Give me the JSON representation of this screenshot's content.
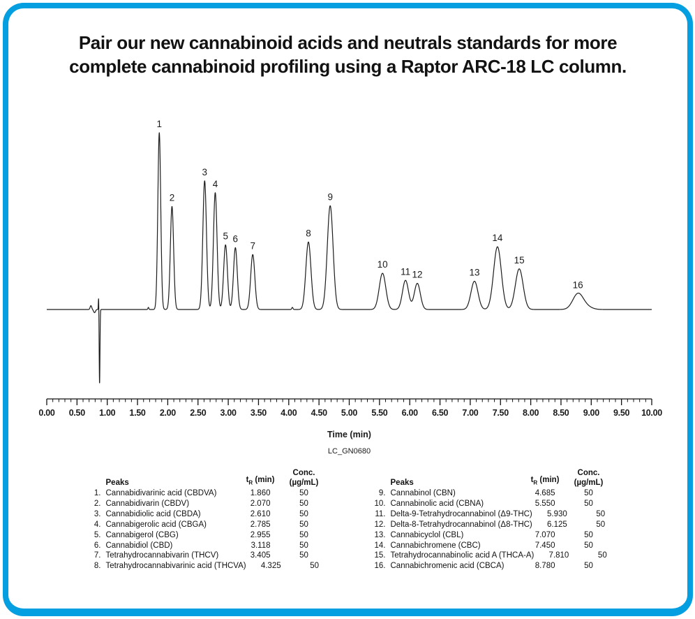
{
  "card": {
    "border_color": "#049fe0",
    "background": "#ffffff"
  },
  "title": {
    "line1": "Pair our new cannabinoid acids and neutrals standards for more",
    "line2": "complete cannabinoid profiling using a Raptor ARC-18 LC column."
  },
  "chart_data": {
    "type": "line",
    "subtype": "chromatogram",
    "xlabel": "Time (min)",
    "xlim": [
      0,
      10
    ],
    "major_tick_step": 0.5,
    "minor_tick_step": 0.1,
    "x_ticks": [
      "0.00",
      "0.50",
      "1.00",
      "1.50",
      "2.00",
      "2.50",
      "3.00",
      "3.50",
      "4.00",
      "4.50",
      "5.00",
      "5.50",
      "6.00",
      "6.50",
      "7.00",
      "7.50",
      "8.00",
      "8.50",
      "9.00",
      "9.50",
      "10.00"
    ],
    "y_units": "relative detector response (unlabeled axis, max peak = 1)",
    "ylim": [
      -0.45,
      1.08
    ],
    "grid": false,
    "legend": false,
    "trace_color": "#1c1c1c",
    "watermark": "LC_GN0680",
    "watermark_color": "#8c8c8c",
    "peaks": [
      {
        "num": "1",
        "t": 1.86,
        "height": 1.0,
        "sigma": 0.024
      },
      {
        "num": "2",
        "t": 2.07,
        "height": 0.583,
        "sigma": 0.027
      },
      {
        "num": "3",
        "t": 2.61,
        "height": 0.728,
        "sigma": 0.03
      },
      {
        "num": "4",
        "t": 2.785,
        "height": 0.661,
        "sigma": 0.03
      },
      {
        "num": "5",
        "t": 2.955,
        "height": 0.366,
        "sigma": 0.031
      },
      {
        "num": "6",
        "t": 3.118,
        "height": 0.35,
        "sigma": 0.031
      },
      {
        "num": "7",
        "t": 3.405,
        "height": 0.311,
        "sigma": 0.034
      },
      {
        "num": "8",
        "t": 4.325,
        "height": 0.382,
        "sigma": 0.042
      },
      {
        "num": "9",
        "t": 4.685,
        "height": 0.587,
        "sigma": 0.048
      },
      {
        "num": "10",
        "t": 5.55,
        "height": 0.205,
        "sigma": 0.054
      },
      {
        "num": "11",
        "t": 5.93,
        "height": 0.165,
        "sigma": 0.05
      },
      {
        "num": "12",
        "t": 6.125,
        "height": 0.148,
        "sigma": 0.05
      },
      {
        "num": "13",
        "t": 7.07,
        "height": 0.16,
        "sigma": 0.058
      },
      {
        "num": "14",
        "t": 7.45,
        "height": 0.355,
        "sigma": 0.064
      },
      {
        "num": "15",
        "t": 7.81,
        "height": 0.23,
        "sigma": 0.064
      },
      {
        "num": "16",
        "t": 8.78,
        "height": 0.088,
        "sigma": 0.085
      }
    ],
    "baseline_artifacts": [
      {
        "t": 0.73,
        "height": 0.022,
        "sigma": 0.013
      },
      {
        "t": 0.79,
        "height": -0.018,
        "sigma": 0.015
      },
      {
        "t": 0.858,
        "height": 0.082,
        "sigma": 0.0045
      },
      {
        "t": 0.873,
        "height": -0.42,
        "sigma": 0.0065
      },
      {
        "t": 1.68,
        "height": 0.012,
        "sigma": 0.008
      },
      {
        "t": 4.06,
        "height": 0.012,
        "sigma": 0.01
      },
      {
        "t": 8.92,
        "height": 0.015,
        "sigma": 0.09
      }
    ]
  },
  "table": {
    "headers": {
      "peaks": "Peaks",
      "tr_t": "t",
      "tr_sub": "R",
      "tr_rest": " (min)",
      "conc_line1": "Conc.",
      "conc_line2": "(µg/mL)"
    },
    "left_rows": [
      {
        "num": "1.",
        "name": "Cannabidivarinic acid (CBDVA)",
        "tr": "1.860",
        "conc": "50"
      },
      {
        "num": "2.",
        "name": "Cannabidivarin (CBDV)",
        "tr": "2.070",
        "conc": "50"
      },
      {
        "num": "3.",
        "name": "Cannabidiolic acid (CBDA)",
        "tr": "2.610",
        "conc": "50"
      },
      {
        "num": "4.",
        "name": "Cannabigerolic acid (CBGA)",
        "tr": "2.785",
        "conc": "50"
      },
      {
        "num": "5.",
        "name": "Cannabigerol (CBG)",
        "tr": "2.955",
        "conc": "50"
      },
      {
        "num": "6.",
        "name": "Cannabidiol (CBD)",
        "tr": "3.118",
        "conc": "50"
      },
      {
        "num": "7.",
        "name": "Tetrahydrocannabivarin (THCV)",
        "tr": "3.405",
        "conc": "50"
      },
      {
        "num": "8.",
        "name": "Tetrahydrocannabivarinic acid (THCVA)",
        "tr": "4.325",
        "conc": "50"
      }
    ],
    "right_rows": [
      {
        "num": "9.",
        "name": "Cannabinol (CBN)",
        "tr": "4.685",
        "conc": "50"
      },
      {
        "num": "10.",
        "name": "Cannabinolic acid (CBNA)",
        "tr": "5.550",
        "conc": "50"
      },
      {
        "num": "11.",
        "name": "Delta-9-Tetrahydrocannabinol (Δ9-THC)",
        "tr": "5.930",
        "conc": "50"
      },
      {
        "num": "12.",
        "name": "Delta-8-Tetrahydrocannabinol (Δ8-THC)",
        "tr": "6.125",
        "conc": "50"
      },
      {
        "num": "13.",
        "name": "Cannabicyclol (CBL)",
        "tr": "7.070",
        "conc": "50"
      },
      {
        "num": "14.",
        "name": "Cannabichromene (CBC)",
        "tr": "7.450",
        "conc": "50"
      },
      {
        "num": "15.",
        "name": "Tetrahydrocannabinolic acid A (THCA-A)",
        "tr": "7.810",
        "conc": "50"
      },
      {
        "num": "16.",
        "name": "Cannabichromenic acid (CBCA)",
        "tr": "8.780",
        "conc": "50"
      }
    ]
  }
}
